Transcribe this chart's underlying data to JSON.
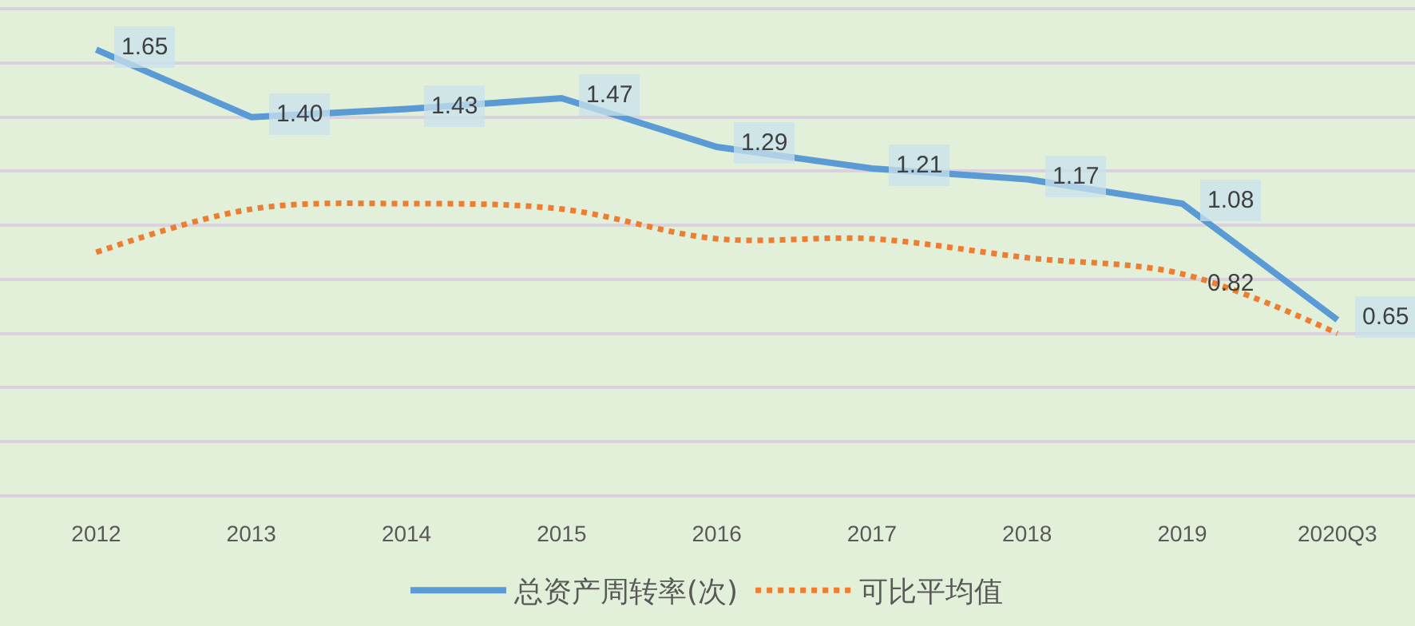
{
  "chart_data": {
    "type": "line",
    "categories": [
      "2012",
      "2013",
      "2014",
      "2015",
      "2016",
      "2017",
      "2018",
      "2019",
      "2020Q3"
    ],
    "series": [
      {
        "name": "总资产周转率(次)",
        "color": "#5b9bd5",
        "line_style": "solid",
        "values": [
          1.65,
          1.4,
          1.43,
          1.47,
          1.29,
          1.21,
          1.17,
          1.08,
          0.65
        ],
        "value_labels": [
          "1.65",
          "1.40",
          "1.43",
          "1.47",
          "1.29",
          "1.21",
          "1.17",
          "1.08",
          "0.65"
        ]
      },
      {
        "name": "可比平均值",
        "color": "#ed7d31",
        "line_style": "dotted",
        "values": [
          0.9,
          1.06,
          1.08,
          1.06,
          0.95,
          0.95,
          0.88,
          0.82,
          0.6
        ],
        "value_labels": [
          null,
          null,
          null,
          null,
          null,
          null,
          null,
          "0.82",
          null
        ]
      }
    ],
    "yticks": [
      {
        "value": 0,
        "label": null
      },
      {
        "value": 0.2,
        "label": null
      },
      {
        "value": 0.4,
        "label": null
      },
      {
        "value": 0.6,
        "label": null
      },
      {
        "value": 0.8,
        "label": null
      },
      {
        "value": 1.0,
        "label": null
      },
      {
        "value": 1.2,
        "label": null
      },
      {
        "value": 1.4,
        "label": null
      },
      {
        "value": 1.6,
        "label": null
      },
      {
        "value": 1.8,
        "label": null
      }
    ],
    "tick_labels": "x",
    "grid": "y",
    "legend": "bottom",
    "marker": "none"
  }
}
